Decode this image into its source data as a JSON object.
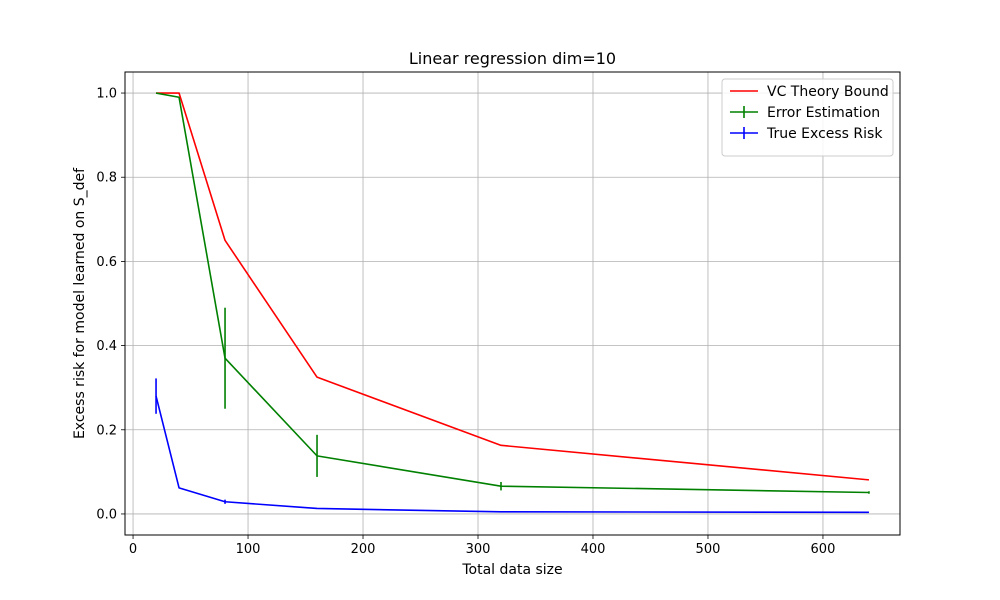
{
  "chart_data": {
    "type": "line",
    "title": "Linear regression dim=10",
    "xlabel": "Total data size",
    "ylabel": "Excess risk for model learned on S_def",
    "xlim": [
      -7,
      667
    ],
    "ylim": [
      -0.05,
      1.05
    ],
    "xticks": [
      0,
      100,
      200,
      300,
      400,
      500,
      600
    ],
    "yticks": [
      0.0,
      0.2,
      0.4,
      0.6,
      0.8,
      1.0
    ],
    "xtick_labels": [
      "0",
      "100",
      "200",
      "300",
      "400",
      "500",
      "600"
    ],
    "ytick_labels": [
      "0.0",
      "0.2",
      "0.4",
      "0.6",
      "0.8",
      "1.0"
    ],
    "grid": true,
    "legend_position": "top-right",
    "series": [
      {
        "name": "VC Theory Bound",
        "color": "#ff0000",
        "x": [
          20,
          40,
          80,
          160,
          320,
          640
        ],
        "y": [
          1.0,
          1.0,
          0.65,
          0.325,
          0.163,
          0.081
        ]
      },
      {
        "name": "Error Estimation",
        "color": "#008000",
        "errorbars": true,
        "x": [
          20,
          40,
          80,
          160,
          320,
          640
        ],
        "y": [
          1.0,
          0.99,
          0.37,
          0.138,
          0.066,
          0.051
        ],
        "yerr": [
          0.0,
          0.0,
          0.12,
          0.05,
          0.01,
          0.003
        ]
      },
      {
        "name": "True Excess Risk",
        "color": "#0000ff",
        "errorbars": true,
        "x": [
          20,
          40,
          80,
          160,
          320,
          640
        ],
        "y": [
          0.28,
          0.062,
          0.029,
          0.013,
          0.005,
          0.004
        ],
        "yerr": [
          0.042,
          0.0,
          0.005,
          0.0,
          0.0,
          0.0
        ]
      }
    ]
  }
}
